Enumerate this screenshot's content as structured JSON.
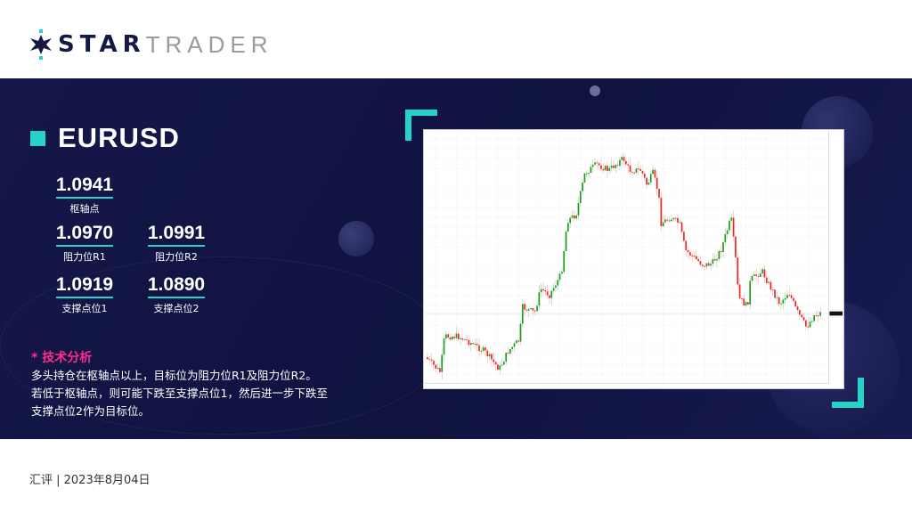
{
  "brand": {
    "part1": "STAR",
    "part2": "TRADER"
  },
  "symbol": "EURUSD",
  "levels": {
    "pivot": {
      "value": "1.0941",
      "label": "枢轴点"
    },
    "r1": {
      "value": "1.0970",
      "label": "阻力位R1"
    },
    "r2": {
      "value": "1.0991",
      "label": "阻力位R2"
    },
    "s1": {
      "value": "1.0919",
      "label": "支撑点位1"
    },
    "s2": {
      "value": "1.0890",
      "label": "支撑点位2"
    }
  },
  "analysis": {
    "heading": "* 技术分析",
    "lines": [
      "多头持仓在枢轴点以上，目标位为阻力位R1及阻力位R2。",
      "若低于枢轴点，则可能下跌至支撑点位1，然后进一步下跌至",
      "支撑点位2作为目标位。"
    ]
  },
  "chart": {
    "type": "candlestick",
    "up_color": "#1a9a1a",
    "down_color": "#ee2222"
  },
  "colors": {
    "accent": "#27d3c6",
    "navy": "#141748",
    "highlight": "#ff2b8a"
  },
  "footer": "汇评 | 2023年8月04日"
}
